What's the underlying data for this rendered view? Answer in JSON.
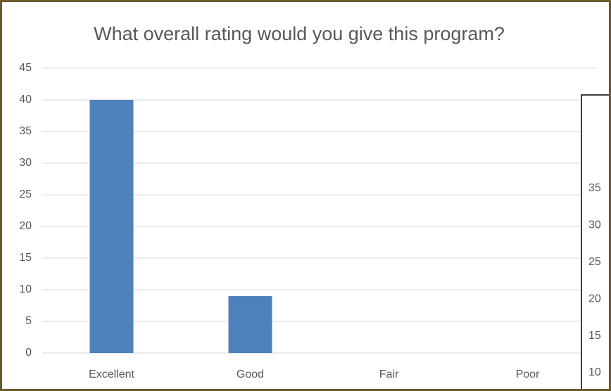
{
  "chart_data": [
    {
      "type": "bar",
      "title": "What overall rating would you give this program?",
      "categories": [
        "Excellent",
        "Good",
        "Fair",
        "Poor"
      ],
      "values": [
        40,
        9,
        0,
        0
      ],
      "color": "#4f81bd",
      "ylim": [
        0,
        45
      ],
      "yticks": [
        0,
        5,
        10,
        15,
        20,
        25,
        30,
        35,
        40,
        45
      ],
      "grid": true
    },
    {
      "type": "axis",
      "ylim": [
        10,
        35
      ],
      "yticks": [
        10,
        15,
        20,
        25,
        30,
        35
      ]
    }
  ]
}
